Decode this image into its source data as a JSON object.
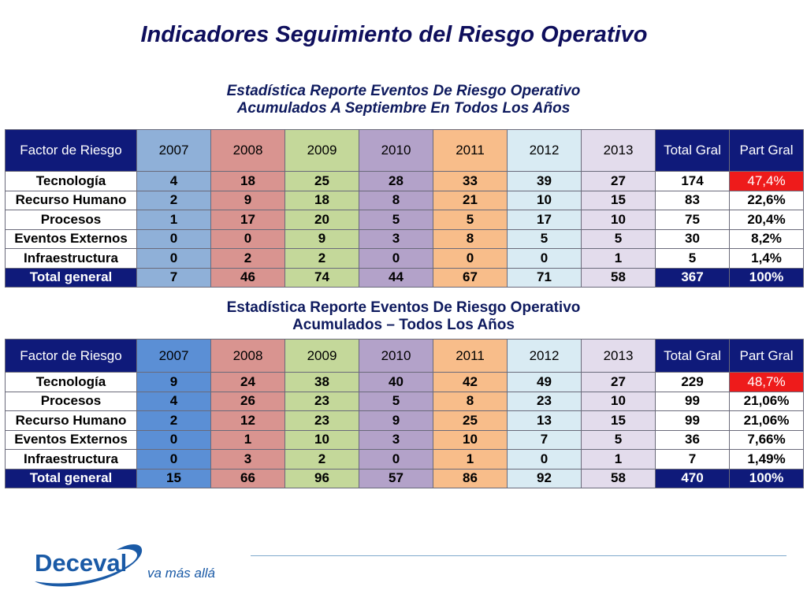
{
  "title": "Indicadores Seguimiento del Riesgo Operativo",
  "section1": {
    "subtitle_line1": "Estadística Reporte Eventos De Riesgo Operativo",
    "subtitle_line2": "Acumulados A Septiembre En Todos Los Años",
    "headers": [
      "Factor de Riesgo",
      "2007",
      "2008",
      "2009",
      "2010",
      "2011",
      "2012",
      "2013",
      "Total Gral",
      "Part Gral"
    ],
    "rows": [
      [
        "Tecnología",
        "4",
        "18",
        "25",
        "28",
        "33",
        "39",
        "27",
        "174",
        "47,4%"
      ],
      [
        "Recurso Humano",
        "2",
        "9",
        "18",
        "8",
        "21",
        "10",
        "15",
        "83",
        "22,6%"
      ],
      [
        "Procesos",
        "1",
        "17",
        "20",
        "5",
        "5",
        "17",
        "10",
        "75",
        "20,4%"
      ],
      [
        "Eventos Externos",
        "0",
        "0",
        "9",
        "3",
        "8",
        "5",
        "5",
        "30",
        "8,2%"
      ],
      [
        "Infraestructura",
        "0",
        "2",
        "2",
        "0",
        "0",
        "0",
        "1",
        "5",
        "1,4%"
      ]
    ],
    "total": [
      "Total general",
      "7",
      "46",
      "74",
      "44",
      "67",
      "71",
      "58",
      "367",
      "100%"
    ]
  },
  "section2": {
    "subtitle_line1": "Estadística Reporte Eventos De Riesgo Operativo",
    "subtitle_line2": "Acumulados – Todos Los Años",
    "headers": [
      "Factor de Riesgo",
      "2007",
      "2008",
      "2009",
      "2010",
      "2011",
      "2012",
      "2013",
      "Total Gral",
      "Part Gral"
    ],
    "rows": [
      [
        "Tecnología",
        "9",
        "24",
        "38",
        "40",
        "42",
        "49",
        "27",
        "229",
        "48,7%"
      ],
      [
        "Procesos",
        "4",
        "26",
        "23",
        "5",
        "8",
        "23",
        "10",
        "99",
        "21,06%"
      ],
      [
        "Recurso Humano",
        "2",
        "12",
        "23",
        "9",
        "25",
        "13",
        "15",
        "99",
        "21,06%"
      ],
      [
        "Eventos Externos",
        "0",
        "1",
        "10",
        "3",
        "10",
        "7",
        "5",
        "36",
        "7,66%"
      ],
      [
        "Infraestructura",
        "0",
        "3",
        "2",
        "0",
        "1",
        "0",
        "1",
        "7",
        "1,49%"
      ]
    ],
    "total": [
      "Total general",
      "15",
      "66",
      "96",
      "57",
      "86",
      "92",
      "58",
      "470",
      "100%"
    ]
  },
  "logo": {
    "brand": "Deceval",
    "tagline": "va más allá"
  },
  "colors": {
    "header_navy": "#0f1a7a",
    "highlight_red": "#ee1b1b",
    "logo_blue": "#1a5aa6"
  }
}
